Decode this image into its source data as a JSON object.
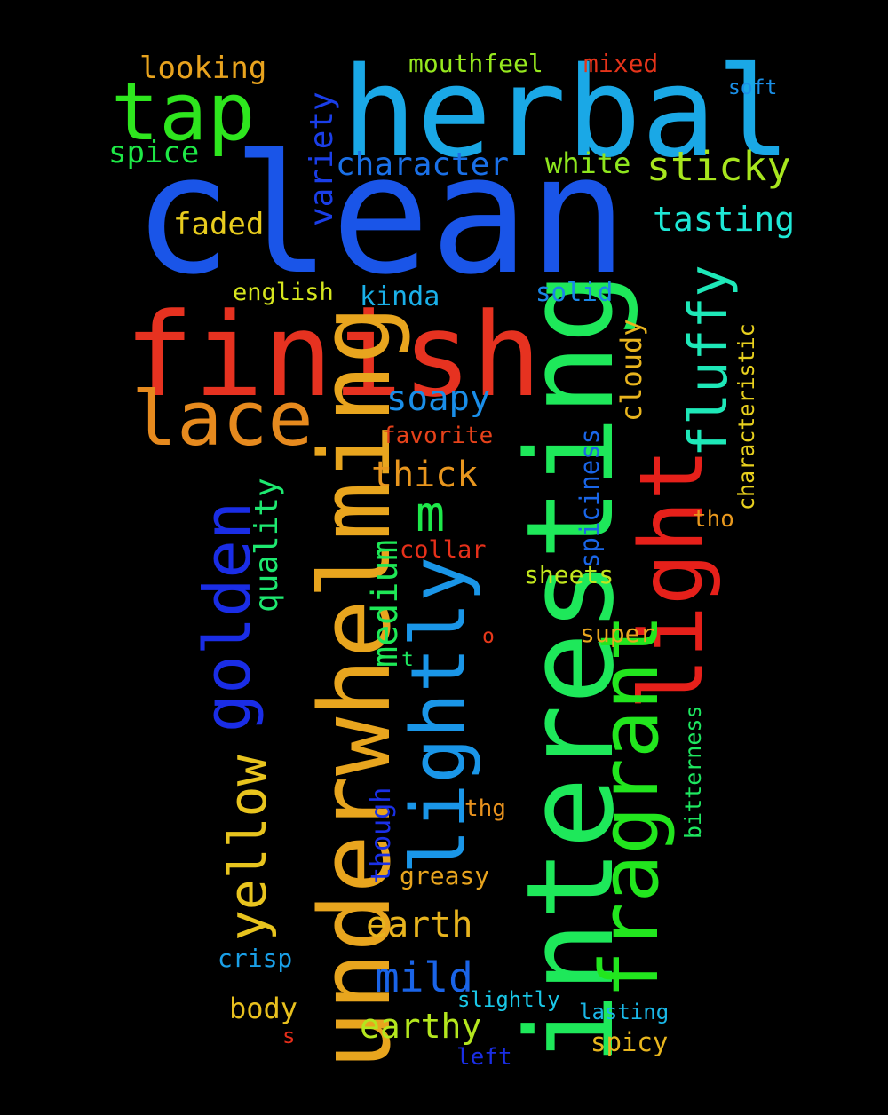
{
  "words": [
    {
      "text": "clean",
      "color": "#1a55e8"
    },
    {
      "text": "herbal",
      "color": "#1aa8e6"
    },
    {
      "text": "finish",
      "color": "#e63220"
    },
    {
      "text": "interesting",
      "color": "#1ee85a"
    },
    {
      "text": "underwhelming",
      "color": "#e8a51e"
    },
    {
      "text": "tap",
      "color": "#2ee61e"
    },
    {
      "text": "lace",
      "color": "#e68a1e"
    },
    {
      "text": "golden",
      "color": "#1a2de6"
    },
    {
      "text": "lightly",
      "color": "#1a96e8"
    },
    {
      "text": "light",
      "color": "#e6201a"
    },
    {
      "text": "fragrant",
      "color": "#22e61e"
    },
    {
      "text": "yellow",
      "color": "#e8c41e"
    },
    {
      "text": "fluffy",
      "color": "#1ee8b8"
    },
    {
      "text": "sticky",
      "color": "#a8e61e"
    },
    {
      "text": "tasting",
      "color": "#1ee8d6"
    },
    {
      "text": "character",
      "color": "#1a70e8"
    },
    {
      "text": "white",
      "color": "#8ee61e"
    },
    {
      "text": "variety",
      "color": "#1a3ee8"
    },
    {
      "text": "looking",
      "color": "#e8a31e"
    },
    {
      "text": "mouthfeel",
      "color": "#96e81e"
    },
    {
      "text": "mixed",
      "color": "#e6341a"
    },
    {
      "text": "soft",
      "color": "#1a90e8"
    },
    {
      "text": "spice",
      "color": "#1ee846"
    },
    {
      "text": "faded",
      "color": "#e8cc1e"
    },
    {
      "text": "english",
      "color": "#d6e61e"
    },
    {
      "text": "kinda",
      "color": "#1ab0e8"
    },
    {
      "text": "solid",
      "color": "#1a86e8"
    },
    {
      "text": "cloudy",
      "color": "#e8b41e"
    },
    {
      "text": "characteristic",
      "color": "#e8d01e"
    },
    {
      "text": "soapy",
      "color": "#1a8ee8"
    },
    {
      "text": "favorite",
      "color": "#e6421a"
    },
    {
      "text": "thick",
      "color": "#e8961e"
    },
    {
      "text": "quality",
      "color": "#1ee870"
    },
    {
      "text": "m",
      "color": "#1ee84a"
    },
    {
      "text": "medium",
      "color": "#1ee856"
    },
    {
      "text": "spiciness",
      "color": "#1a66e8"
    },
    {
      "text": "collar",
      "color": "#e6301a"
    },
    {
      "text": "tho",
      "color": "#e8981e"
    },
    {
      "text": "sheets",
      "color": "#c2e61e"
    },
    {
      "text": "o",
      "color": "#e6381a"
    },
    {
      "text": "super",
      "color": "#e8a61e"
    },
    {
      "text": "t",
      "color": "#1ee860"
    },
    {
      "text": "bitterness",
      "color": "#1ee860"
    },
    {
      "text": "though",
      "color": "#1a30e6"
    },
    {
      "text": "thg",
      "color": "#e8921e"
    },
    {
      "text": "greasy",
      "color": "#e8a41e"
    },
    {
      "text": "earth",
      "color": "#e8b41e"
    },
    {
      "text": "mild",
      "color": "#1a64e8"
    },
    {
      "text": "crisp",
      "color": "#1aa0e8"
    },
    {
      "text": "body",
      "color": "#e8c01e"
    },
    {
      "text": "slightly",
      "color": "#1ac8e8"
    },
    {
      "text": "lasting",
      "color": "#1ab8e8"
    },
    {
      "text": "earthy",
      "color": "#b4e61e"
    },
    {
      "text": "s",
      "color": "#e62e1a"
    },
    {
      "text": "spicy",
      "color": "#e8b61e"
    },
    {
      "text": "left",
      "color": "#1a2ee6"
    }
  ]
}
